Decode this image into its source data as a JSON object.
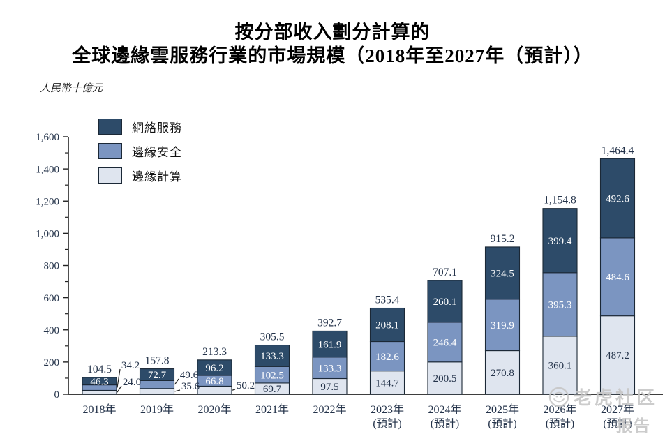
{
  "title": {
    "line1": "按分部收入劃分計算的",
    "line2": "全球邊緣雲服務行業的市場規模（2018年至2027年（預計））"
  },
  "unit_label": "人民幣十億元",
  "watermark": {
    "line1": "老虎社区",
    "line2": "报告"
  },
  "colors": {
    "network_services": "#2d4b69",
    "edge_security": "#7b95c1",
    "edge_computing": "#dfe5ef",
    "segment_border": "#1b2836",
    "axis": "#222222",
    "chart_text": "#24334a",
    "watermark": "#c7c7c7"
  },
  "chart_data": {
    "type": "bar",
    "stacked": true,
    "title": "按分部收入劃分計算的全球邊緣雲服務行業的市場規模（2018年至2027年（預計））",
    "unit": "人民幣十億元",
    "grid": false,
    "legend_position": "top-left",
    "categories": [
      {
        "label": "2018年",
        "note": ""
      },
      {
        "label": "2019年",
        "note": ""
      },
      {
        "label": "2020年",
        "note": ""
      },
      {
        "label": "2021年",
        "note": ""
      },
      {
        "label": "2022年",
        "note": ""
      },
      {
        "label": "2023年",
        "note": "(預計)"
      },
      {
        "label": "2024年",
        "note": "(預計)"
      },
      {
        "label": "2025年",
        "note": "(預計)"
      },
      {
        "label": "2026年",
        "note": "(預計)"
      },
      {
        "label": "2027年",
        "note": "(預計)"
      }
    ],
    "series": [
      {
        "name": "網絡服務",
        "color": "#2d4b69",
        "label_color": "#ffffff",
        "values": [
          "46.3",
          "72.7",
          "96.2",
          "133.3",
          "161.9",
          "208.1",
          "260.1",
          "324.5",
          "399.4",
          "492.6"
        ]
      },
      {
        "name": "邊緣安全",
        "color": "#7b95c1",
        "label_color": "#ffffff",
        "values": [
          "34.2",
          "49.6",
          "66.8",
          "102.5",
          "133.3",
          "182.6",
          "246.4",
          "319.9",
          "395.3",
          "484.6"
        ]
      },
      {
        "name": "邊緣計算",
        "color": "#dfe5ef",
        "label_color": "#24334a",
        "values": [
          "24.0",
          "35.6",
          "50.2",
          "69.7",
          "97.5",
          "144.7",
          "200.5",
          "270.8",
          "360.1",
          "487.2"
        ]
      }
    ],
    "totals": [
      "104.5",
      "157.8",
      "213.3",
      "305.5",
      "392.7",
      "535.4",
      "707.1",
      "915.2",
      "1,154.8",
      "1,464.4"
    ],
    "y_axis": {
      "min": 0,
      "max": 1600,
      "major_step": 200,
      "minor_step": 100,
      "tick_labels": [
        "0",
        "200",
        "400",
        "600",
        "800",
        "1,000",
        "1,200",
        "1,400",
        "1,600"
      ]
    },
    "outside_value_labels": [
      {
        "year": 0,
        "series": "邊緣安全",
        "x": 187,
        "y": 523
      },
      {
        "year": 0,
        "series": "邊緣計算",
        "x": 189,
        "y": 547
      },
      {
        "year": 1,
        "series": "邊緣安全",
        "x": 271,
        "y": 537
      },
      {
        "year": 1,
        "series": "邊緣計算",
        "x": 273,
        "y": 553
      },
      {
        "year": 2,
        "series": "邊緣計算",
        "x": 352,
        "y": 552
      }
    ]
  }
}
